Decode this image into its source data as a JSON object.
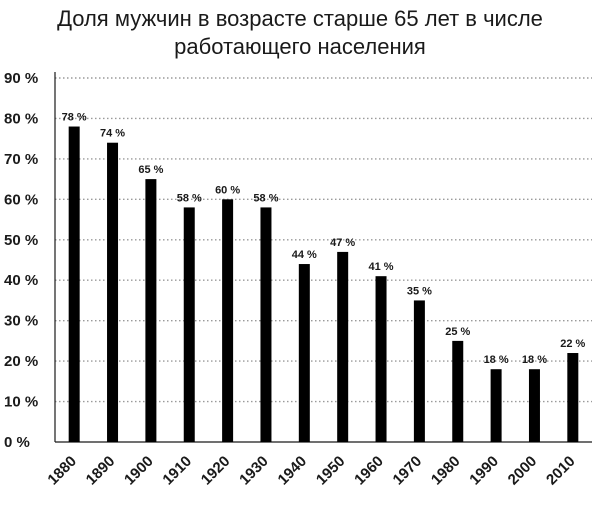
{
  "chart_data": {
    "type": "bar",
    "title_lines": [
      "Доля мужчин в возрасте старше 65 лет в числе",
      "работающего населения"
    ],
    "categories": [
      "1880",
      "1890",
      "1900",
      "1910",
      "1920",
      "1930",
      "1940",
      "1950",
      "1960",
      "1970",
      "1980",
      "1990",
      "2000",
      "2010"
    ],
    "values": [
      78,
      74,
      65,
      58,
      60,
      58,
      44,
      47,
      41,
      35,
      25,
      18,
      18,
      22
    ],
    "value_labels": [
      "78 %",
      "74 %",
      "65 %",
      "58 %",
      "60 %",
      "58 %",
      "44 %",
      "47 %",
      "41 %",
      "35 %",
      "25 %",
      "18 %",
      "18 %",
      "22 %"
    ],
    "yticks": [
      0,
      10,
      20,
      30,
      40,
      50,
      60,
      70,
      80,
      90
    ],
    "ytick_labels": [
      "0 %",
      "10 %",
      "20 %",
      "30 %",
      "40 %",
      "50 %",
      "60 %",
      "70 %",
      "80 %",
      "90 %"
    ],
    "ylim": [
      0,
      90
    ],
    "xlabel": "",
    "ylabel": "",
    "grid": true,
    "grid_style": "dotted",
    "bar_color": "#000000",
    "grid_color": "#9a9a9a",
    "axis_color": "#1a1a1a"
  }
}
